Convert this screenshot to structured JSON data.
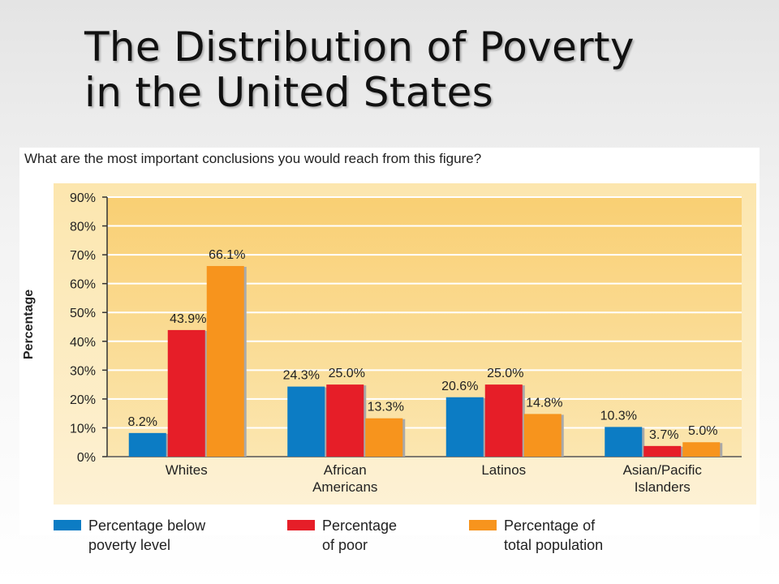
{
  "slide": {
    "title_line1": "The Distribution of Poverty",
    "title_line2": "in the United States",
    "question": "What are the most important conclusions you would reach from this figure?"
  },
  "chart_data": {
    "type": "bar",
    "ylabel": "Percentage",
    "ylim": [
      0,
      90
    ],
    "yticks": [
      "0%",
      "10%",
      "20%",
      "30%",
      "40%",
      "50%",
      "60%",
      "70%",
      "80%",
      "90%"
    ],
    "categories": [
      [
        "Whites"
      ],
      [
        "African",
        "Americans"
      ],
      [
        "Latinos"
      ],
      [
        "Asian/Pacific",
        "Islanders"
      ]
    ],
    "series": [
      {
        "name": "Percentage below poverty level",
        "legend_lines": [
          "Percentage below",
          "poverty level"
        ],
        "color": "#0c7cc4",
        "values": [
          8.2,
          24.3,
          20.6,
          10.3
        ],
        "labels": [
          "8.2%",
          "24.3%",
          "20.6%",
          "10.3%"
        ]
      },
      {
        "name": "Percentage of poor",
        "legend_lines": [
          "Percentage",
          "of poor"
        ],
        "color": "#e61e28",
        "values": [
          43.9,
          25.0,
          25.0,
          3.7
        ],
        "labels": [
          "43.9%",
          "25.0%",
          "25.0%",
          "3.7%"
        ]
      },
      {
        "name": "Percentage of total population",
        "legend_lines": [
          "Percentage of",
          "total population"
        ],
        "color": "#f7941d",
        "values": [
          66.1,
          13.3,
          14.8,
          5.0
        ],
        "labels": [
          "66.1%",
          "13.3%",
          "14.8%",
          "5.0%"
        ]
      }
    ],
    "grid": true,
    "legend_position": "bottom"
  }
}
